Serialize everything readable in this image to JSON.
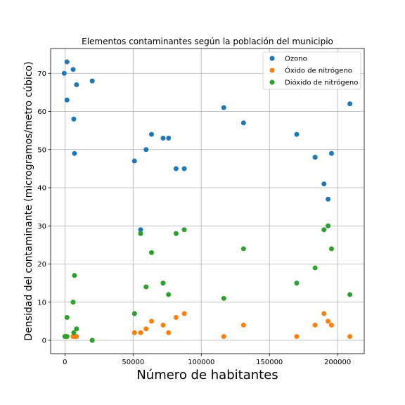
{
  "chart_data": {
    "type": "scatter",
    "title": "Elementos contaminantes según la población del municipio",
    "xlabel": "Número de habitantes",
    "ylabel": "Densidad del contaminante (microgramos/metro cúbico)",
    "xlim": [
      -10500,
      219500
    ],
    "ylim": [
      -3.5,
      76.5
    ],
    "xticks": [
      0,
      50000,
      100000,
      150000,
      200000
    ],
    "yticks": [
      0,
      10,
      20,
      30,
      40,
      50,
      60,
      70
    ],
    "grid": true,
    "legend_position": "top-right",
    "series": [
      {
        "name": "Ozono",
        "color": "#1f77b4",
        "points": [
          [
            -500,
            70
          ],
          [
            1500,
            73
          ],
          [
            1500,
            63
          ],
          [
            6000,
            71
          ],
          [
            6500,
            58
          ],
          [
            7000,
            49
          ],
          [
            8500,
            67
          ],
          [
            20000,
            68
          ],
          [
            51000,
            47
          ],
          [
            55500,
            29
          ],
          [
            59500,
            50
          ],
          [
            63500,
            54
          ],
          [
            72000,
            53
          ],
          [
            76000,
            53
          ],
          [
            81500,
            45
          ],
          [
            87500,
            45
          ],
          [
            116500,
            61
          ],
          [
            131000,
            57
          ],
          [
            170000,
            54
          ],
          [
            183500,
            48
          ],
          [
            190000,
            41
          ],
          [
            193000,
            37
          ],
          [
            195500,
            49
          ],
          [
            209000,
            62
          ]
        ]
      },
      {
        "name": "Óxido de nitrógeno",
        "color": "#ff7f0e",
        "points": [
          [
            0,
            1
          ],
          [
            1500,
            1
          ],
          [
            6000,
            1
          ],
          [
            7000,
            1
          ],
          [
            8000,
            1
          ],
          [
            8500,
            1
          ],
          [
            20000,
            0
          ],
          [
            51000,
            2
          ],
          [
            55500,
            2
          ],
          [
            59500,
            3
          ],
          [
            63500,
            5
          ],
          [
            72000,
            4
          ],
          [
            76000,
            2
          ],
          [
            81500,
            6
          ],
          [
            87500,
            7
          ],
          [
            116500,
            1
          ],
          [
            131000,
            4
          ],
          [
            170000,
            1
          ],
          [
            183500,
            4
          ],
          [
            190000,
            7
          ],
          [
            193000,
            5
          ],
          [
            195500,
            4
          ],
          [
            209000,
            1
          ]
        ]
      },
      {
        "name": "Dióxido de nitrógeno",
        "color": "#2ca02c",
        "points": [
          [
            0,
            1
          ],
          [
            1500,
            1
          ],
          [
            1500,
            6
          ],
          [
            6000,
            10
          ],
          [
            6500,
            2
          ],
          [
            7000,
            17
          ],
          [
            8500,
            3
          ],
          [
            20000,
            0
          ],
          [
            51000,
            7
          ],
          [
            55500,
            28
          ],
          [
            59500,
            14
          ],
          [
            63500,
            23
          ],
          [
            72000,
            15
          ],
          [
            76000,
            12
          ],
          [
            81500,
            28
          ],
          [
            87500,
            29
          ],
          [
            116500,
            11
          ],
          [
            131000,
            24
          ],
          [
            170000,
            15
          ],
          [
            183500,
            19
          ],
          [
            190000,
            29
          ],
          [
            193000,
            30
          ],
          [
            195500,
            24
          ],
          [
            209000,
            12
          ]
        ]
      }
    ]
  }
}
